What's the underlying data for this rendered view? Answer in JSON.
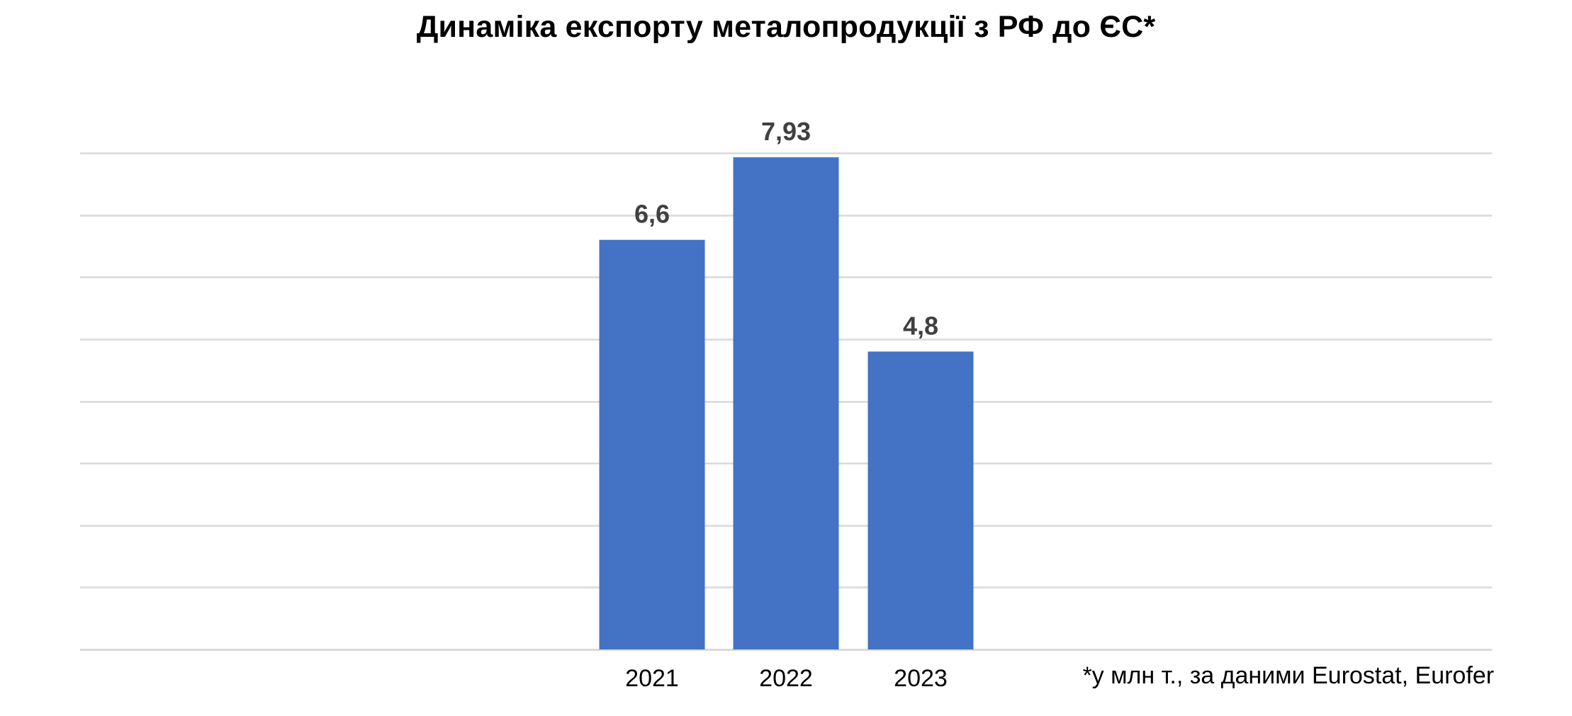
{
  "chart_data": {
    "type": "bar",
    "title": "Динаміка експорту металопродукції з РФ до ЄС*",
    "categories": [
      "2021",
      "2022",
      "2023"
    ],
    "values": [
      6.6,
      7.93,
      4.8
    ],
    "data_labels": [
      "6,6",
      "7,93",
      "4,8"
    ],
    "ylim": [
      0,
      8
    ],
    "grid": true,
    "legend": "none",
    "bar_color": "#4472C4",
    "grid_color": "#D9D9D9",
    "footnote": "*у млн т., за даними Eurostat, Eurofer"
  }
}
